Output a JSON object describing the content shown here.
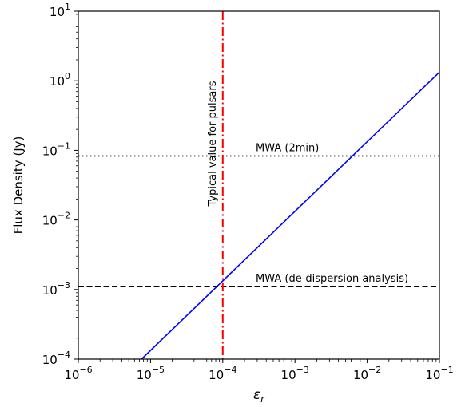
{
  "chart_data": {
    "type": "line",
    "title": "",
    "xlabel": "ε_r",
    "ylabel": "Flux Density (Jy)",
    "xscale": "log",
    "yscale": "log",
    "xlim": [
      1e-06,
      0.1
    ],
    "ylim": [
      0.0001,
      10
    ],
    "grid": false,
    "legend": "none",
    "x_ticks": [
      {
        "value": 1e-06,
        "base": "10",
        "exp": "−6"
      },
      {
        "value": 1e-05,
        "base": "10",
        "exp": "−5"
      },
      {
        "value": 0.0001,
        "base": "10",
        "exp": "−4"
      },
      {
        "value": 0.001,
        "base": "10",
        "exp": "−3"
      },
      {
        "value": 0.01,
        "base": "10",
        "exp": "−2"
      },
      {
        "value": 0.1,
        "base": "10",
        "exp": "−1"
      }
    ],
    "y_ticks": [
      {
        "value": 0.0001,
        "base": "10",
        "exp": "−4"
      },
      {
        "value": 0.001,
        "base": "10",
        "exp": "−3"
      },
      {
        "value": 0.01,
        "base": "10",
        "exp": "−2"
      },
      {
        "value": 0.1,
        "base": "10",
        "exp": "−1"
      },
      {
        "value": 1,
        "base": "10",
        "exp": "0"
      },
      {
        "value": 10,
        "base": "10",
        "exp": "1"
      }
    ],
    "series": [
      {
        "x": [
          7.5e-06,
          0.1
        ],
        "y": [
          0.0001,
          1.33
        ],
        "color": "#0000ff",
        "style": "solid"
      }
    ],
    "hlines": [
      {
        "y": 0.083,
        "style": "dotted",
        "color": "#000000",
        "label": "MWA (2min)"
      },
      {
        "y": 0.0011,
        "style": "dashed",
        "color": "#000000",
        "label": "MWA (de-dispersion analysis)"
      }
    ],
    "vlines": [
      {
        "x": 0.0001,
        "style": "dashdot",
        "color": "#ff0000",
        "label": "Typical value for pulsars"
      }
    ]
  }
}
